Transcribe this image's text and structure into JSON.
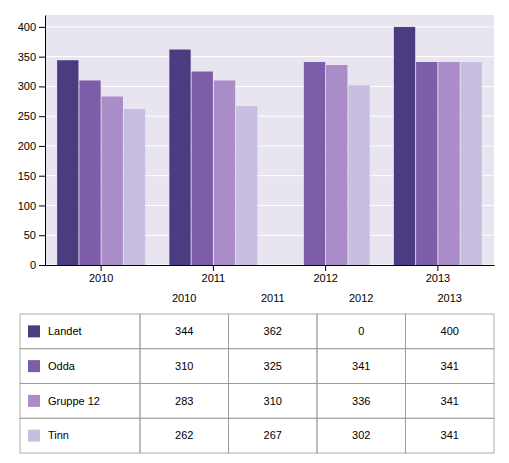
{
  "chart_data": {
    "type": "bar",
    "categories": [
      "2010",
      "2011",
      "2012",
      "2013"
    ],
    "series": [
      {
        "name": "Landet",
        "color": "#4B3C82",
        "values": [
          344,
          362,
          0,
          400
        ]
      },
      {
        "name": "Odda",
        "color": "#7B5EA7",
        "values": [
          310,
          325,
          341,
          341
        ]
      },
      {
        "name": "Gruppe 12",
        "color": "#A98CC8",
        "values": [
          283,
          310,
          336,
          341
        ]
      },
      {
        "name": "Tinn",
        "color": "#C8BFE0",
        "values": [
          262,
          267,
          302,
          341
        ]
      }
    ],
    "ylim": [
      0,
      420
    ],
    "yticks": [
      0,
      50,
      100,
      150,
      200,
      250,
      300,
      350,
      400
    ],
    "grid": true,
    "legend": "bottom"
  }
}
